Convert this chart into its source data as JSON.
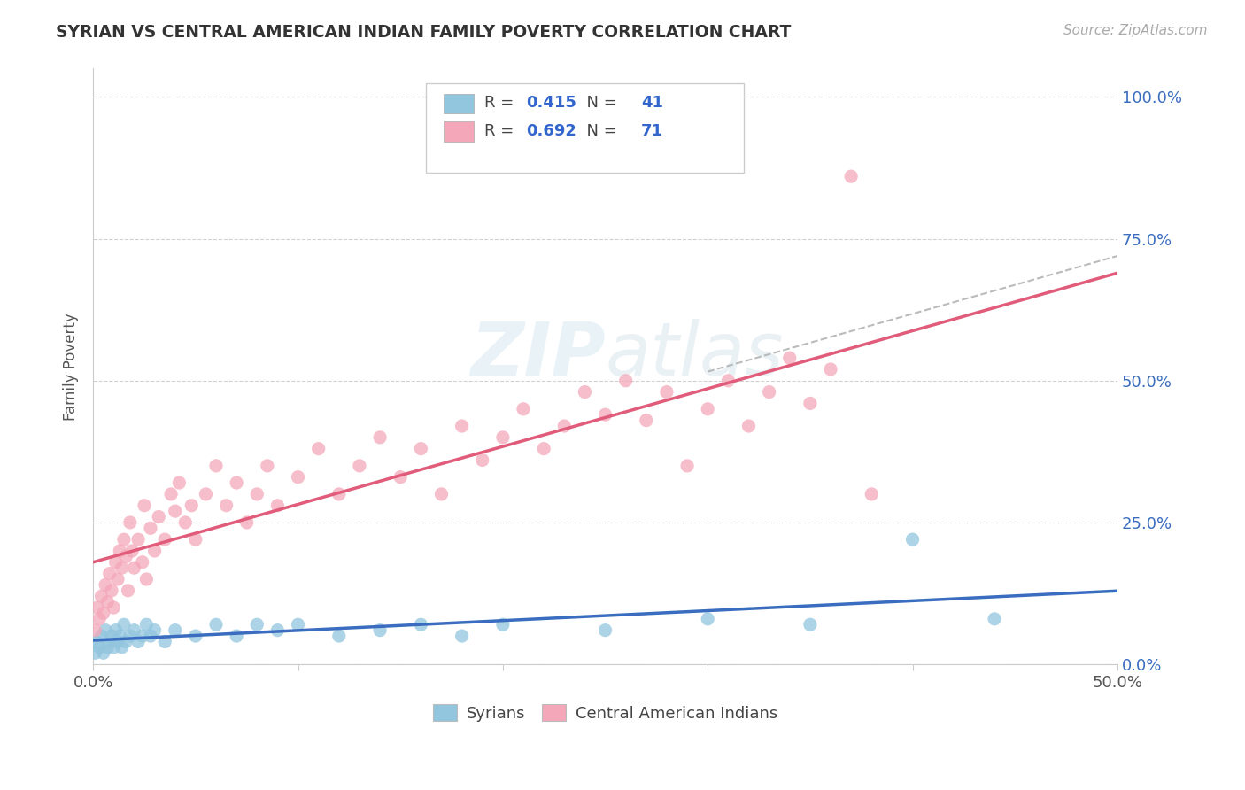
{
  "title": "SYRIAN VS CENTRAL AMERICAN INDIAN FAMILY POVERTY CORRELATION CHART",
  "source": "Source: ZipAtlas.com",
  "ylabel": "Family Poverty",
  "watermark": "ZIPatlas",
  "xlim": [
    0.0,
    0.5
  ],
  "ylim": [
    0.0,
    1.05
  ],
  "blue_R": 0.415,
  "blue_N": 41,
  "pink_R": 0.692,
  "pink_N": 71,
  "blue_color": "#92c5de",
  "pink_color": "#f4a7b9",
  "blue_line_color": "#3a6dbf",
  "pink_line_color": "#e05c7a",
  "legend_label_blue": "Syrians",
  "legend_label_pink": "Central American Indians",
  "blue_scatter": [
    [
      0.001,
      0.02
    ],
    [
      0.002,
      0.04
    ],
    [
      0.003,
      0.03
    ],
    [
      0.004,
      0.05
    ],
    [
      0.005,
      0.02
    ],
    [
      0.006,
      0.06
    ],
    [
      0.007,
      0.03
    ],
    [
      0.008,
      0.04
    ],
    [
      0.009,
      0.05
    ],
    [
      0.01,
      0.03
    ],
    [
      0.011,
      0.06
    ],
    [
      0.012,
      0.04
    ],
    [
      0.013,
      0.05
    ],
    [
      0.014,
      0.03
    ],
    [
      0.015,
      0.07
    ],
    [
      0.016,
      0.04
    ],
    [
      0.018,
      0.05
    ],
    [
      0.02,
      0.06
    ],
    [
      0.022,
      0.04
    ],
    [
      0.024,
      0.05
    ],
    [
      0.026,
      0.07
    ],
    [
      0.028,
      0.05
    ],
    [
      0.03,
      0.06
    ],
    [
      0.035,
      0.04
    ],
    [
      0.04,
      0.06
    ],
    [
      0.05,
      0.05
    ],
    [
      0.06,
      0.07
    ],
    [
      0.07,
      0.05
    ],
    [
      0.08,
      0.07
    ],
    [
      0.09,
      0.06
    ],
    [
      0.1,
      0.07
    ],
    [
      0.12,
      0.05
    ],
    [
      0.14,
      0.06
    ],
    [
      0.16,
      0.07
    ],
    [
      0.18,
      0.05
    ],
    [
      0.2,
      0.07
    ],
    [
      0.25,
      0.06
    ],
    [
      0.3,
      0.08
    ],
    [
      0.35,
      0.07
    ],
    [
      0.4,
      0.22
    ],
    [
      0.44,
      0.08
    ]
  ],
  "pink_scatter": [
    [
      0.001,
      0.06
    ],
    [
      0.002,
      0.1
    ],
    [
      0.003,
      0.08
    ],
    [
      0.004,
      0.12
    ],
    [
      0.005,
      0.09
    ],
    [
      0.006,
      0.14
    ],
    [
      0.007,
      0.11
    ],
    [
      0.008,
      0.16
    ],
    [
      0.009,
      0.13
    ],
    [
      0.01,
      0.1
    ],
    [
      0.011,
      0.18
    ],
    [
      0.012,
      0.15
    ],
    [
      0.013,
      0.2
    ],
    [
      0.014,
      0.17
    ],
    [
      0.015,
      0.22
    ],
    [
      0.016,
      0.19
    ],
    [
      0.017,
      0.13
    ],
    [
      0.018,
      0.25
    ],
    [
      0.019,
      0.2
    ],
    [
      0.02,
      0.17
    ],
    [
      0.022,
      0.22
    ],
    [
      0.024,
      0.18
    ],
    [
      0.025,
      0.28
    ],
    [
      0.026,
      0.15
    ],
    [
      0.028,
      0.24
    ],
    [
      0.03,
      0.2
    ],
    [
      0.032,
      0.26
    ],
    [
      0.035,
      0.22
    ],
    [
      0.038,
      0.3
    ],
    [
      0.04,
      0.27
    ],
    [
      0.042,
      0.32
    ],
    [
      0.045,
      0.25
    ],
    [
      0.048,
      0.28
    ],
    [
      0.05,
      0.22
    ],
    [
      0.055,
      0.3
    ],
    [
      0.06,
      0.35
    ],
    [
      0.065,
      0.28
    ],
    [
      0.07,
      0.32
    ],
    [
      0.075,
      0.25
    ],
    [
      0.08,
      0.3
    ],
    [
      0.085,
      0.35
    ],
    [
      0.09,
      0.28
    ],
    [
      0.1,
      0.33
    ],
    [
      0.11,
      0.38
    ],
    [
      0.12,
      0.3
    ],
    [
      0.13,
      0.35
    ],
    [
      0.14,
      0.4
    ],
    [
      0.15,
      0.33
    ],
    [
      0.16,
      0.38
    ],
    [
      0.17,
      0.3
    ],
    [
      0.18,
      0.42
    ],
    [
      0.19,
      0.36
    ],
    [
      0.2,
      0.4
    ],
    [
      0.21,
      0.45
    ],
    [
      0.22,
      0.38
    ],
    [
      0.23,
      0.42
    ],
    [
      0.24,
      0.48
    ],
    [
      0.25,
      0.44
    ],
    [
      0.26,
      0.5
    ],
    [
      0.27,
      0.43
    ],
    [
      0.28,
      0.48
    ],
    [
      0.29,
      0.35
    ],
    [
      0.3,
      0.45
    ],
    [
      0.31,
      0.5
    ],
    [
      0.32,
      0.42
    ],
    [
      0.33,
      0.48
    ],
    [
      0.34,
      0.54
    ],
    [
      0.35,
      0.46
    ],
    [
      0.36,
      0.52
    ],
    [
      0.37,
      0.86
    ],
    [
      0.38,
      0.3
    ]
  ],
  "background_color": "#ffffff",
  "grid_color": "#cccccc",
  "title_color": "#333333",
  "source_color": "#aaaaaa",
  "axis_label_color": "#555555",
  "right_tick_color": "#3a6dbf"
}
